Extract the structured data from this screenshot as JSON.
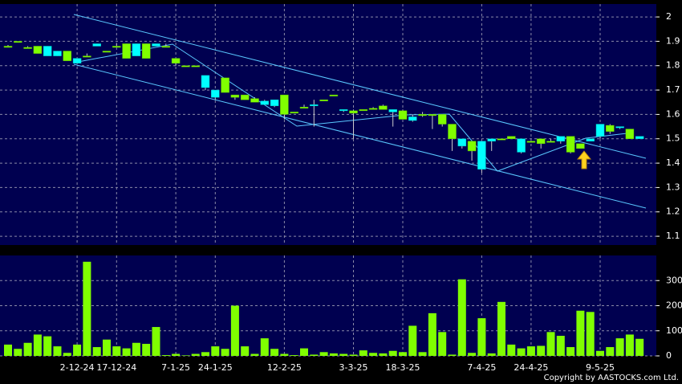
{
  "chart_data": [
    {
      "type": "candlestick",
      "up_color": "#00ffff",
      "down_color": "#80ff00",
      "open": [
        1.88,
        1.9,
        1.875,
        1.88,
        1.84,
        1.84,
        1.86,
        1.81,
        1.84,
        1.88,
        1.86,
        1.88,
        1.89,
        1.84,
        1.89,
        1.88,
        1.88,
        1.83,
        1.8,
        1.8,
        1.71,
        1.67,
        1.75,
        1.68,
        1.68,
        1.665,
        1.64,
        1.635,
        1.68,
        1.61,
        1.63,
        1.635,
        1.66,
        1.68,
        1.615,
        1.615,
        1.62,
        1.625,
        1.635,
        1.61,
        1.615,
        1.575,
        1.6,
        1.6,
        1.6,
        1.56,
        1.47,
        1.49,
        1.375,
        1.49,
        1.5,
        1.51,
        1.445,
        1.49,
        1.5,
        1.49,
        1.49,
        1.51,
        1.48,
        1.49,
        1.51,
        1.555,
        1.545,
        1.54,
        1.5
      ],
      "high": [
        1.885,
        1.9,
        1.88,
        1.88,
        1.88,
        1.86,
        1.86,
        1.83,
        1.85,
        1.89,
        1.86,
        1.89,
        1.89,
        1.89,
        1.89,
        1.89,
        1.89,
        1.83,
        1.8,
        1.8,
        1.76,
        1.7,
        1.75,
        1.68,
        1.68,
        1.67,
        1.66,
        1.66,
        1.68,
        1.61,
        1.64,
        1.66,
        1.66,
        1.68,
        1.62,
        1.62,
        1.62,
        1.63,
        1.64,
        1.62,
        1.62,
        1.6,
        1.61,
        1.6,
        1.6,
        1.56,
        1.5,
        1.49,
        1.49,
        1.5,
        1.5,
        1.51,
        1.5,
        1.49,
        1.5,
        1.5,
        1.51,
        1.51,
        1.48,
        1.5,
        1.56,
        1.56,
        1.55,
        1.54,
        1.51
      ],
      "low": [
        1.875,
        1.9,
        1.87,
        1.85,
        1.84,
        1.84,
        1.82,
        1.81,
        1.84,
        1.88,
        1.86,
        1.88,
        1.83,
        1.84,
        1.83,
        1.88,
        1.88,
        1.8,
        1.8,
        1.8,
        1.7,
        1.66,
        1.69,
        1.66,
        1.66,
        1.65,
        1.64,
        1.63,
        1.58,
        1.61,
        1.63,
        1.55,
        1.66,
        1.68,
        1.61,
        1.5,
        1.62,
        1.62,
        1.62,
        1.55,
        1.58,
        1.57,
        1.59,
        1.54,
        1.55,
        1.45,
        1.46,
        1.41,
        1.36,
        1.45,
        1.5,
        1.5,
        1.44,
        1.49,
        1.46,
        1.49,
        1.48,
        1.44,
        1.46,
        1.49,
        1.5,
        1.52,
        1.54,
        1.5,
        1.5
      ],
      "close": [
        1.88,
        1.9,
        1.875,
        1.85,
        1.88,
        1.86,
        1.82,
        1.83,
        1.84,
        1.89,
        1.86,
        1.88,
        1.83,
        1.89,
        1.83,
        1.89,
        1.88,
        1.81,
        1.8,
        1.8,
        1.76,
        1.7,
        1.69,
        1.67,
        1.66,
        1.65,
        1.655,
        1.66,
        1.6,
        1.61,
        1.63,
        1.64,
        1.66,
        1.68,
        1.62,
        1.605,
        1.62,
        1.625,
        1.62,
        1.62,
        1.58,
        1.59,
        1.6,
        1.6,
        1.56,
        1.5,
        1.5,
        1.45,
        1.49,
        1.5,
        1.5,
        1.5,
        1.5,
        1.49,
        1.48,
        1.49,
        1.51,
        1.445,
        1.46,
        1.5,
        1.56,
        1.53,
        1.55,
        1.5,
        1.51
      ],
      "ylim": [
        1.064,
        2.053
      ],
      "yticks": [
        1.1,
        1.2,
        1.3,
        1.4,
        1.5,
        1.6,
        1.7,
        1.8,
        1.9,
        2
      ],
      "grid": true
    },
    {
      "type": "bar",
      "color": "#80ff00",
      "categories": [
        null,
        null,
        null,
        null,
        null,
        null,
        null,
        "2-12-24",
        null,
        null,
        null,
        "17-12-24",
        null,
        null,
        null,
        null,
        null,
        "7-1-25",
        null,
        null,
        null,
        "24-1-25",
        null,
        null,
        null,
        null,
        null,
        null,
        "12-2-25",
        null,
        null,
        null,
        null,
        null,
        null,
        "3-3-25",
        null,
        null,
        null,
        null,
        "18-3-25",
        null,
        null,
        null,
        null,
        null,
        null,
        null,
        "7-4-25",
        null,
        null,
        null,
        null,
        "24-4-25",
        null,
        null,
        null,
        null,
        null,
        null,
        "9-5-25",
        null,
        null,
        null,
        null
      ],
      "values": [
        45,
        28,
        52,
        85,
        78,
        38,
        12,
        45,
        375,
        35,
        65,
        38,
        30,
        52,
        48,
        115,
        3,
        8,
        2,
        8,
        15,
        38,
        28,
        200,
        38,
        8,
        70,
        28,
        8,
        3,
        30,
        5,
        15,
        10,
        8,
        5,
        22,
        12,
        10,
        20,
        15,
        120,
        15,
        170,
        95,
        5,
        305,
        12,
        150,
        10,
        215,
        45,
        30,
        38,
        40,
        95,
        80,
        35,
        180,
        175,
        20,
        35,
        70,
        85,
        68
      ],
      "ylim": [
        0,
        400
      ],
      "yticks": [
        0,
        100,
        200,
        300
      ],
      "grid": true
    }
  ],
  "copyright": "Copyright by AASTOCKS.com Ltd."
}
